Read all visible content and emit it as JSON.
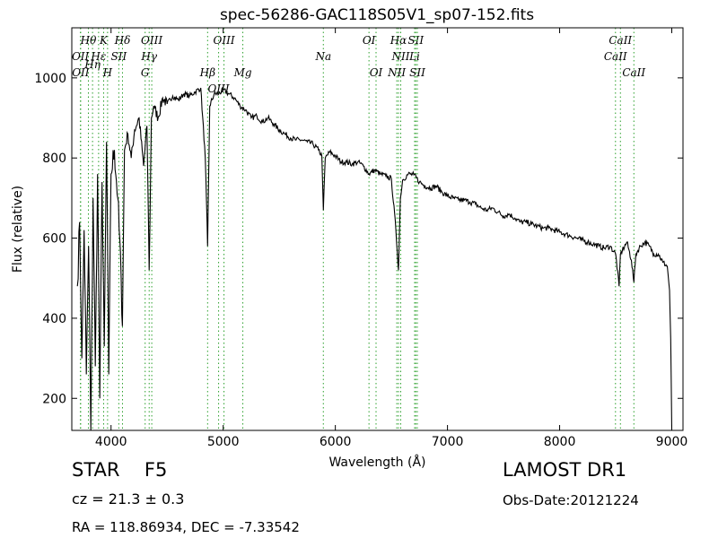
{
  "chart_data": {
    "type": "line",
    "title": "spec-56286-GAC118S05V1_sp07-152.fits",
    "xlabel": "Wavelength (Å)",
    "ylabel": "Flux (relative)",
    "xlim": [
      3650,
      9100
    ],
    "ylim": [
      120,
      1125
    ],
    "xticks": [
      4000,
      5000,
      6000,
      7000,
      8000,
      9000
    ],
    "yticks": [
      200,
      400,
      600,
      800,
      1000
    ],
    "grid": false,
    "line_color": "#000000",
    "marker_color": "#2ca02c",
    "series": [
      {
        "x": [
          3700,
          3720,
          3740,
          3760,
          3780,
          3800,
          3820,
          3840,
          3860,
          3880,
          3900,
          3920,
          3940,
          3960,
          3980,
          4000,
          4030,
          4060,
          4090,
          4101,
          4120,
          4150,
          4180,
          4210,
          4250,
          4290,
          4320,
          4340,
          4360,
          4380,
          4420,
          4460,
          4500,
          4550,
          4600,
          4650,
          4700,
          4750,
          4800,
          4840,
          4861,
          4880,
          4920,
          4960,
          5000,
          5050,
          5100,
          5150,
          5200,
          5250,
          5300,
          5350,
          5400,
          5450,
          5500,
          5550,
          5600,
          5650,
          5700,
          5750,
          5800,
          5850,
          5880,
          5893,
          5910,
          5950,
          6000,
          6050,
          6100,
          6150,
          6200,
          6250,
          6300,
          6350,
          6400,
          6450,
          6500,
          6540,
          6563,
          6580,
          6600,
          6650,
          6700,
          6750,
          6800,
          6850,
          6900,
          6950,
          7000,
          7050,
          7100,
          7150,
          7200,
          7250,
          7300,
          7350,
          7400,
          7450,
          7500,
          7550,
          7600,
          7650,
          7700,
          7750,
          7800,
          7850,
          7900,
          7950,
          8000,
          8050,
          8100,
          8150,
          8200,
          8250,
          8300,
          8350,
          8400,
          8450,
          8500,
          8530,
          8542,
          8560,
          8600,
          8640,
          8662,
          8680,
          8720,
          8760,
          8800,
          8840,
          8880,
          8920,
          8960,
          8980,
          8990,
          9000
        ],
        "y": [
          480,
          640,
          300,
          620,
          260,
          580,
          120,
          700,
          280,
          760,
          200,
          740,
          330,
          840,
          260,
          760,
          820,
          700,
          500,
          380,
          820,
          860,
          800,
          870,
          900,
          780,
          880,
          520,
          900,
          930,
          900,
          950,
          935,
          955,
          945,
          960,
          955,
          965,
          975,
          800,
          580,
          930,
          960,
          960,
          970,
          960,
          950,
          930,
          920,
          900,
          905,
          890,
          900,
          885,
          870,
          860,
          850,
          845,
          845,
          840,
          835,
          820,
          805,
          670,
          800,
          815,
          805,
          790,
          790,
          785,
          790,
          780,
          760,
          770,
          760,
          755,
          748,
          620,
          520,
          700,
          745,
          760,
          758,
          740,
          730,
          725,
          730,
          715,
          705,
          700,
          695,
          695,
          690,
          685,
          675,
          670,
          675,
          665,
          655,
          660,
          650,
          640,
          640,
          635,
          630,
          625,
          625,
          620,
          615,
          610,
          605,
          600,
          595,
          590,
          585,
          580,
          575,
          580,
          560,
          480,
          560,
          570,
          590,
          545,
          490,
          560,
          580,
          590,
          580,
          560,
          560,
          540,
          530,
          470,
          350,
          120
        ]
      }
    ],
    "line_markers": [
      {
        "label": "Hθ",
        "wavelength": 3798,
        "row": 0
      },
      {
        "label": "OII",
        "wavelength": 3727,
        "row": 1
      },
      {
        "label": "OII",
        "wavelength": 3729,
        "row": 2
      },
      {
        "label": "Hη",
        "wavelength": 3835,
        "row": 1.5
      },
      {
        "label": "Hε",
        "wavelength": 3889,
        "row": 1
      },
      {
        "label": "K",
        "wavelength": 3934,
        "row": 0
      },
      {
        "label": "SII",
        "wavelength": 4069,
        "row": 1
      },
      {
        "label": "H",
        "wavelength": 3969,
        "row": 2
      },
      {
        "label": "Hδ",
        "wavelength": 4102,
        "row": 0
      },
      {
        "label": "OIII",
        "wavelength": 4363,
        "row": 0
      },
      {
        "label": "Hγ",
        "wavelength": 4340,
        "row": 1
      },
      {
        "label": "G",
        "wavelength": 4304,
        "row": 2
      },
      {
        "label": "Hβ",
        "wavelength": 4861,
        "row": 2
      },
      {
        "label": "OIII",
        "wavelength": 5007,
        "row": 0
      },
      {
        "label": "OIII",
        "wavelength": 4959,
        "row": 3
      },
      {
        "label": "Mg",
        "wavelength": 5175,
        "row": 2
      },
      {
        "label": "Na",
        "wavelength": 5893,
        "row": 1
      },
      {
        "label": "OI",
        "wavelength": 6300,
        "row": 0
      },
      {
        "label": "OI",
        "wavelength": 6363,
        "row": 2
      },
      {
        "label": "Hα",
        "wavelength": 6563,
        "row": 0
      },
      {
        "label": "SII",
        "wavelength": 6717,
        "row": 0
      },
      {
        "label": "NII",
        "wavelength": 6583,
        "row": 1
      },
      {
        "label": "Li",
        "wavelength": 6707,
        "row": 1
      },
      {
        "label": "NII",
        "wavelength": 6548,
        "row": 2
      },
      {
        "label": "SII",
        "wavelength": 6731,
        "row": 2
      },
      {
        "label": "CaII",
        "wavelength": 8542,
        "row": 0
      },
      {
        "label": "CaII",
        "wavelength": 8498,
        "row": 1
      },
      {
        "label": "CaII",
        "wavelength": 8662,
        "row": 2
      }
    ]
  },
  "info": {
    "object_class_prefix": "STAR",
    "subclass": "F5",
    "redshift_text": "cz = 21.3 ± 0.3",
    "radec_text": "RA = 118.86934, DEC = -7.33542",
    "survey": "LAMOST DR1",
    "obs_date": "Obs-Date:20121224"
  }
}
